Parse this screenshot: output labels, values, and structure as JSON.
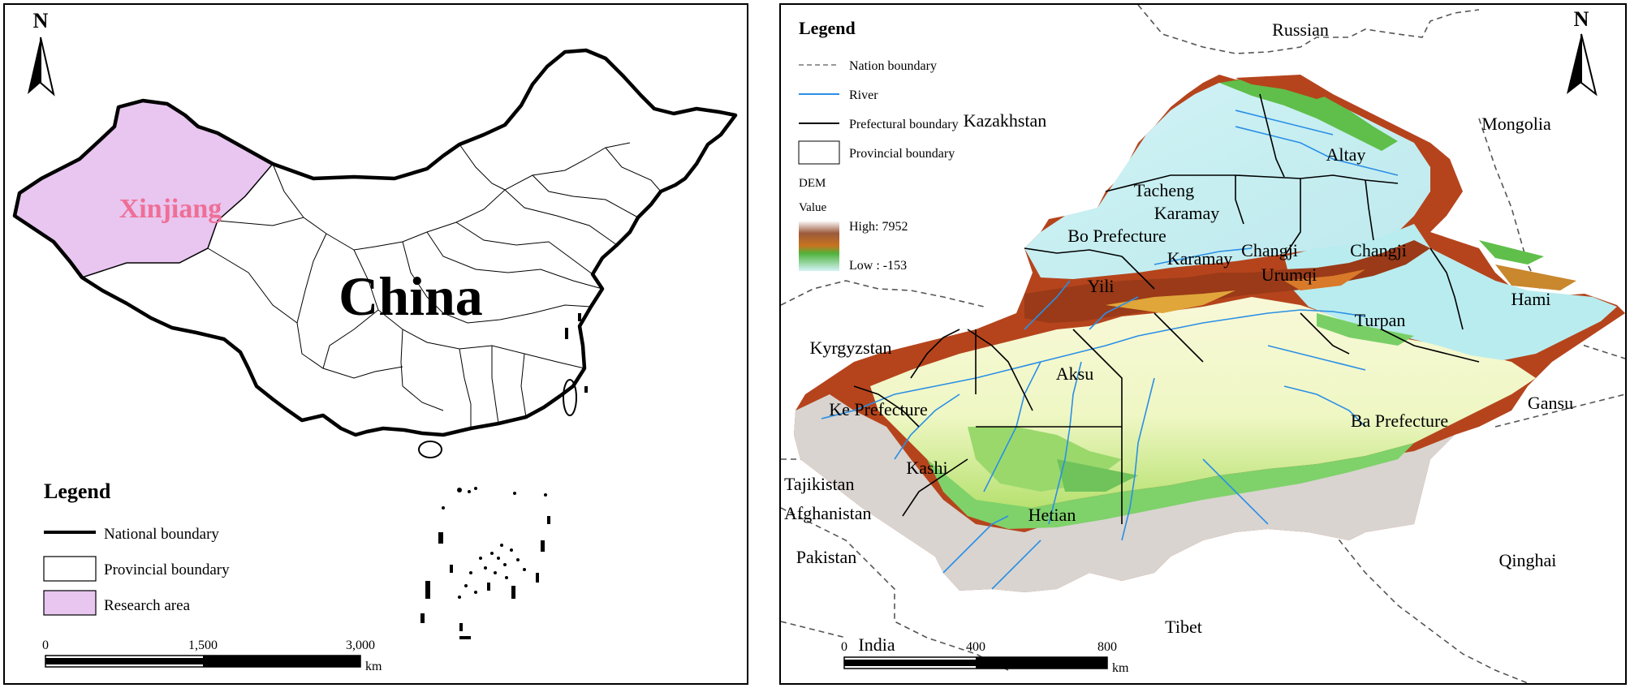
{
  "left_map": {
    "north": "N",
    "region_label": "Xinjiang",
    "country_label": "China",
    "legend": {
      "title": "Legend",
      "items": [
        {
          "label": "National boundary",
          "symbol": "thick-line"
        },
        {
          "label": "Provincial boundary",
          "symbol": "box"
        },
        {
          "label": "Research area",
          "symbol": "filled-box",
          "color": "#e8c6f0"
        }
      ]
    },
    "scale": {
      "ticks": [
        "0",
        "1,500",
        "3,000"
      ],
      "unit": "km"
    },
    "colors": {
      "research_area": "#e8c6f0",
      "region_label": "#ee6f96"
    }
  },
  "right_map": {
    "north": "N",
    "legend": {
      "title": "Legend",
      "items": [
        {
          "label": "Nation boundary",
          "symbol": "dashed-line"
        },
        {
          "label": "River",
          "symbol": "blue-line",
          "color": "#2a8fe6"
        },
        {
          "label": "Prefectural boundary",
          "symbol": "black-line"
        },
        {
          "label": "Provincial boundary",
          "symbol": "box"
        }
      ],
      "dem_title": "DEM",
      "dem_value": "Value",
      "dem_high": "High: 7952",
      "dem_low": "Low : -153"
    },
    "neighbors": [
      "Russian",
      "Kazakhstan",
      "Mongolia",
      "Kyrgyzstan",
      "Gansu",
      "Tajikistan",
      "Afghanistan",
      "Pakistan",
      "Qinghai",
      "India",
      "Tibet"
    ],
    "prefectures": [
      "Altay",
      "Tacheng",
      "Karamay",
      "Bo Prefecture",
      "Karamay",
      "Changji",
      "Changji",
      "Urumqi",
      "Yili",
      "Hami",
      "Turpan",
      "Aksu",
      "Ke Prefecture",
      "Kashi",
      "Ba Prefecture",
      "Hetian"
    ],
    "scale": {
      "ticks": [
        "0",
        "400",
        "800"
      ],
      "unit": "km"
    },
    "colors": {
      "river": "#2a8fe6",
      "low": "#cfeff8",
      "mid": "#7fd16a",
      "high": "#b5441c",
      "peak": "#f2f2f2"
    }
  }
}
